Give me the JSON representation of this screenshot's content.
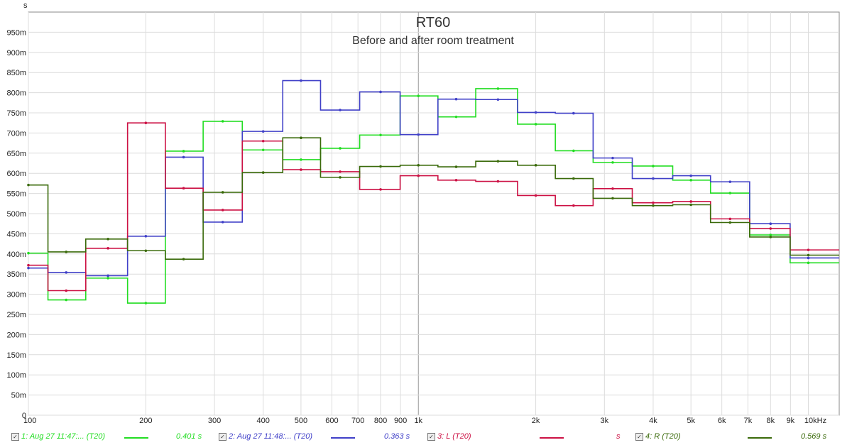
{
  "chart_data": {
    "type": "line",
    "title": "RT60",
    "subtitle": "Before and after room treatment",
    "ylabel": "s",
    "xlabel": "",
    "xscale": "log",
    "xlim": [
      100,
      12000
    ],
    "ylim": [
      0,
      1.0
    ],
    "grid": true,
    "y_ticks": [
      0,
      0.05,
      0.1,
      0.15,
      0.2,
      0.25,
      0.3,
      0.35,
      0.4,
      0.45,
      0.5,
      0.55,
      0.6,
      0.65,
      0.7,
      0.75,
      0.8,
      0.85,
      0.9,
      0.95
    ],
    "y_tick_labels": [
      "0",
      "50m",
      "100m",
      "150m",
      "200m",
      "250m",
      "300m",
      "350m",
      "400m",
      "450m",
      "500m",
      "550m",
      "600m",
      "650m",
      "700m",
      "750m",
      "800m",
      "850m",
      "900m",
      "950m"
    ],
    "x_ticks": [
      100,
      200,
      300,
      400,
      500,
      600,
      700,
      800,
      900,
      1000,
      2000,
      3000,
      4000,
      5000,
      6000,
      7000,
      8000,
      9000,
      10000
    ],
    "x_tick_labels": [
      "100",
      "200",
      "300",
      "400",
      "500",
      "600",
      "700",
      "800",
      "900",
      "1k",
      "2k",
      "3k",
      "4k",
      "5k",
      "6k",
      "7k",
      "8k",
      "9k",
      "10kHz"
    ],
    "x_bands": [
      100,
      125,
      160,
      200,
      250,
      315,
      400,
      500,
      630,
      800,
      1000,
      1250,
      1600,
      2000,
      2500,
      3150,
      4000,
      5000,
      6300,
      8000,
      10000
    ],
    "series": [
      {
        "name": "1: Aug 27 11:47:... (T20)",
        "color": "#22dd22",
        "legend_value": "0.401 s",
        "checked": true,
        "values": [
          0.402,
          0.286,
          0.34,
          0.278,
          0.655,
          0.729,
          0.658,
          0.634,
          0.662,
          0.695,
          0.792,
          0.74,
          0.81,
          0.722,
          0.656,
          0.627,
          0.618,
          0.583,
          0.551,
          0.447,
          0.378
        ]
      },
      {
        "name": "2: Aug 27 11:48:... (T20)",
        "color": "#4040c8",
        "legend_value": "0.363 s",
        "checked": true,
        "values": [
          0.365,
          0.354,
          0.346,
          0.444,
          0.64,
          0.479,
          0.704,
          0.83,
          0.757,
          0.802,
          0.696,
          0.784,
          0.783,
          0.751,
          0.749,
          0.638,
          0.587,
          0.594,
          0.579,
          0.475,
          0.39
        ]
      },
      {
        "name": "3: L (T20)",
        "color": "#cc1144",
        "legend_value": "s",
        "checked": true,
        "values": [
          0.372,
          0.309,
          0.414,
          0.725,
          0.563,
          0.509,
          0.68,
          0.609,
          0.604,
          0.56,
          0.594,
          0.583,
          0.58,
          0.545,
          0.52,
          0.562,
          0.527,
          0.53,
          0.487,
          0.463,
          0.41
        ]
      },
      {
        "name": "4: R (T20)",
        "color": "#3a6a0a",
        "legend_value": "0.569 s",
        "checked": true,
        "values": [
          0.571,
          0.405,
          0.437,
          0.408,
          0.387,
          0.553,
          0.602,
          0.688,
          0.59,
          0.617,
          0.62,
          0.616,
          0.63,
          0.62,
          0.587,
          0.538,
          0.52,
          0.522,
          0.478,
          0.442,
          0.397
        ]
      }
    ]
  }
}
